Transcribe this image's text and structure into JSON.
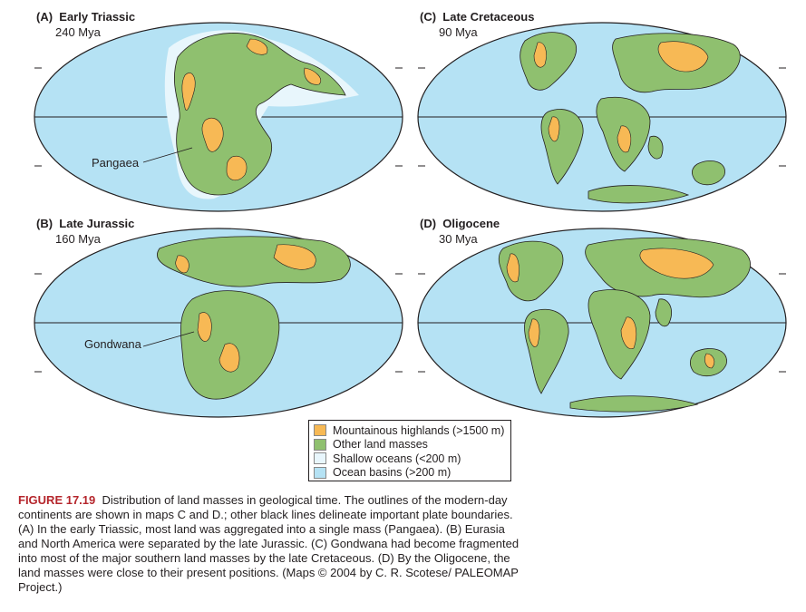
{
  "panels": [
    {
      "letter": "(A)",
      "title": "Early Triassic",
      "age": "240 Mya",
      "callout": "Pangaea"
    },
    {
      "letter": "(C)",
      "title": "Late Cretaceous",
      "age": "90 Mya",
      "callout": ""
    },
    {
      "letter": "(B)",
      "title": "Late Jurassic",
      "age": "160 Mya",
      "callout": "Gondwana"
    },
    {
      "letter": "(D)",
      "title": "Oligocene",
      "age": "30 Mya",
      "callout": ""
    }
  ],
  "legend": [
    {
      "label": "Mountainous highlands (>1500 m)",
      "color": "#f7b955"
    },
    {
      "label": "Other land masses",
      "color": "#8fc06f"
    },
    {
      "label": "Shallow oceans (<200 m)",
      "color": "#e8f6fc"
    },
    {
      "label": "Ocean basins (>200 m)",
      "color": "#b5e2f4"
    }
  ],
  "caption": {
    "label": "FIGURE 17.19",
    "text": "Distribution of land masses in geological time. The outlines of the modern-day continents are shown in maps C and D.; other black lines delineate important plate boundaries. (A) In the early Triassic, most land was aggregated into a single mass (Pangaea). (B) Eurasia and North America were separated by the late Jurassic. (C) Gondwana had become fragmented into most of the major southern land masses by the late Cretaceous. (D) By the Oligocene, the land masses were close to their present positions. (Maps © 2004 by C. R. Scotese/ PALEOMAP Project.)"
  },
  "colors": {
    "ocean": "#b5e2f4",
    "shallow": "#e8f6fc",
    "land": "#8fc06f",
    "highland": "#f7b955",
    "outline": "#231f20",
    "caption_label": "#b5262c"
  }
}
